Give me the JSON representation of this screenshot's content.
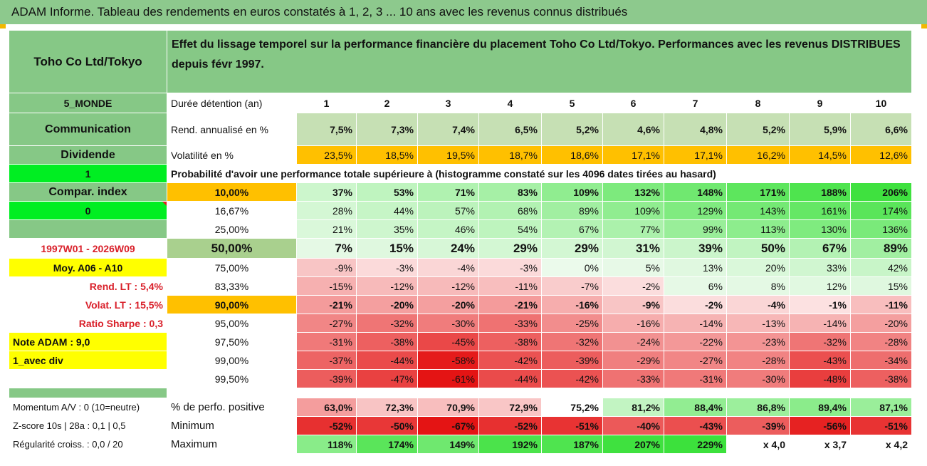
{
  "title": "ADAM Informe. Tableau des rendements en euros constatés à 1, 2, 3 ... 10 ans avec les revenus connus distribués",
  "header": {
    "fund_name": "Toho Co Ltd/Tokyo",
    "description": "Effet du lissage temporel sur la performance financière du placement Toho Co Ltd/Tokyo. Performances avec les revenus DISTRIBUES depuis févr 1997."
  },
  "years": [
    "1",
    "2",
    "3",
    "4",
    "5",
    "6",
    "7",
    "8",
    "9",
    "10"
  ],
  "summary": {
    "region": "5_MONDE",
    "sector": "Communication",
    "income_type": "Dividende",
    "duration_label": "Durée détention (an)",
    "return_label": "Rend. annualisé en %",
    "returns": [
      "7,5%",
      "7,3%",
      "7,4%",
      "6,5%",
      "5,2%",
      "4,6%",
      "4,8%",
      "5,2%",
      "5,9%",
      "6,6%"
    ],
    "vol_label": "Volatilité en %",
    "volatility": [
      "23,5%",
      "18,5%",
      "19,5%",
      "18,7%",
      "18,6%",
      "17,1%",
      "17,1%",
      "16,2%",
      "14,5%",
      "12,6%"
    ]
  },
  "prob": {
    "left": "1",
    "label": "Probabilité d'avoir une performance totale supérieure à (histogramme constaté sur les 4096 dates tirées au hasard)"
  },
  "left_col": [
    "Compar. index",
    "0",
    "",
    "1997W01 - 2026W09",
    "Moy. A06 - A10",
    "Rend. LT :   5,4%",
    "Volat. LT :   15,5%",
    "Ratio Sharpe :   0,3",
    "Note ADAM : 9,0",
    "1_avec div",
    ""
  ],
  "percentiles": [
    {
      "p": "10,00%",
      "v": [
        "37%",
        "53%",
        "71%",
        "83%",
        "109%",
        "132%",
        "148%",
        "171%",
        "188%",
        "206%"
      ]
    },
    {
      "p": "16,67%",
      "v": [
        "28%",
        "44%",
        "57%",
        "68%",
        "89%",
        "109%",
        "129%",
        "143%",
        "161%",
        "174%"
      ]
    },
    {
      "p": "25,00%",
      "v": [
        "21%",
        "35%",
        "46%",
        "54%",
        "67%",
        "77%",
        "99%",
        "113%",
        "130%",
        "136%"
      ]
    },
    {
      "p": "50,00%",
      "v": [
        "7%",
        "15%",
        "24%",
        "29%",
        "29%",
        "31%",
        "39%",
        "50%",
        "67%",
        "89%"
      ]
    },
    {
      "p": "75,00%",
      "v": [
        "-9%",
        "-3%",
        "-4%",
        "-3%",
        "0%",
        "5%",
        "13%",
        "20%",
        "33%",
        "42%"
      ]
    },
    {
      "p": "83,33%",
      "v": [
        "-15%",
        "-12%",
        "-12%",
        "-11%",
        "-7%",
        "-2%",
        "6%",
        "8%",
        "12%",
        "15%"
      ]
    },
    {
      "p": "90,00%",
      "v": [
        "-21%",
        "-20%",
        "-20%",
        "-21%",
        "-16%",
        "-9%",
        "-2%",
        "-4%",
        "-1%",
        "-11%"
      ]
    },
    {
      "p": "95,00%",
      "v": [
        "-27%",
        "-32%",
        "-30%",
        "-33%",
        "-25%",
        "-16%",
        "-14%",
        "-13%",
        "-14%",
        "-20%"
      ]
    },
    {
      "p": "97,50%",
      "v": [
        "-31%",
        "-38%",
        "-45%",
        "-38%",
        "-32%",
        "-24%",
        "-22%",
        "-23%",
        "-32%",
        "-28%"
      ]
    },
    {
      "p": "99,00%",
      "v": [
        "-37%",
        "-44%",
        "-58%",
        "-42%",
        "-39%",
        "-29%",
        "-27%",
        "-28%",
        "-43%",
        "-34%"
      ]
    },
    {
      "p": "99,50%",
      "v": [
        "-39%",
        "-47%",
        "-61%",
        "-44%",
        "-42%",
        "-33%",
        "-31%",
        "-30%",
        "-48%",
        "-38%"
      ]
    }
  ],
  "bottom": [
    {
      "left": "Momentum A/V : 0 (10=neutre)",
      "label": "% de perfo. positive",
      "v": [
        "63,0%",
        "72,3%",
        "70,9%",
        "72,9%",
        "75,2%",
        "81,2%",
        "88,4%",
        "86,8%",
        "89,4%",
        "87,1%"
      ]
    },
    {
      "left": "Z-score 10s | 28a : 0,1 | 0,5",
      "label": "Minimum",
      "v": [
        "-52%",
        "-50%",
        "-67%",
        "-52%",
        "-51%",
        "-40%",
        "-43%",
        "-39%",
        "-56%",
        "-51%"
      ]
    },
    {
      "left": "Régularité croiss. : 0,0 / 20",
      "label": "Maximum",
      "v": [
        "118%",
        "174%",
        "149%",
        "192%",
        "187%",
        "207%",
        "229%",
        "x 4,0",
        "x 3,7",
        "x 4,2"
      ]
    }
  ],
  "colors": {
    "header_green": "#86c886",
    "orange": "#ffc000",
    "bright_green": "#00ee22",
    "yellow": "#ffff00",
    "label_red": "#d9202a"
  }
}
